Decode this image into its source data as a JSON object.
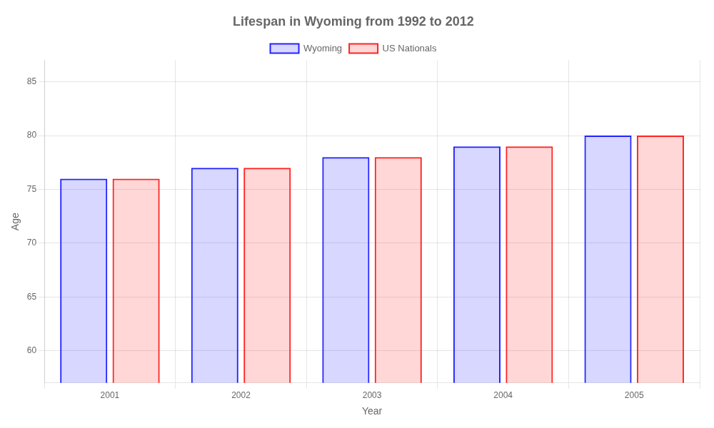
{
  "chart_data": {
    "type": "bar",
    "title": "Lifespan in Wyoming from 1992 to 2012",
    "x_label": "Year",
    "y_label": "Age",
    "categories": [
      "2001",
      "2002",
      "2003",
      "2004",
      "2005"
    ],
    "series": [
      {
        "name": "Wyoming",
        "color": "#2222ff",
        "values": [
          76,
          77,
          78,
          79,
          80
        ]
      },
      {
        "name": "US Nationals",
        "color": "#ff2222",
        "values": [
          76,
          77,
          78,
          79,
          80
        ]
      }
    ],
    "ylim": [
      57,
      87
    ],
    "yticks": [
      60,
      65,
      70,
      75,
      80,
      85
    ],
    "grid": true,
    "legend": "top"
  }
}
